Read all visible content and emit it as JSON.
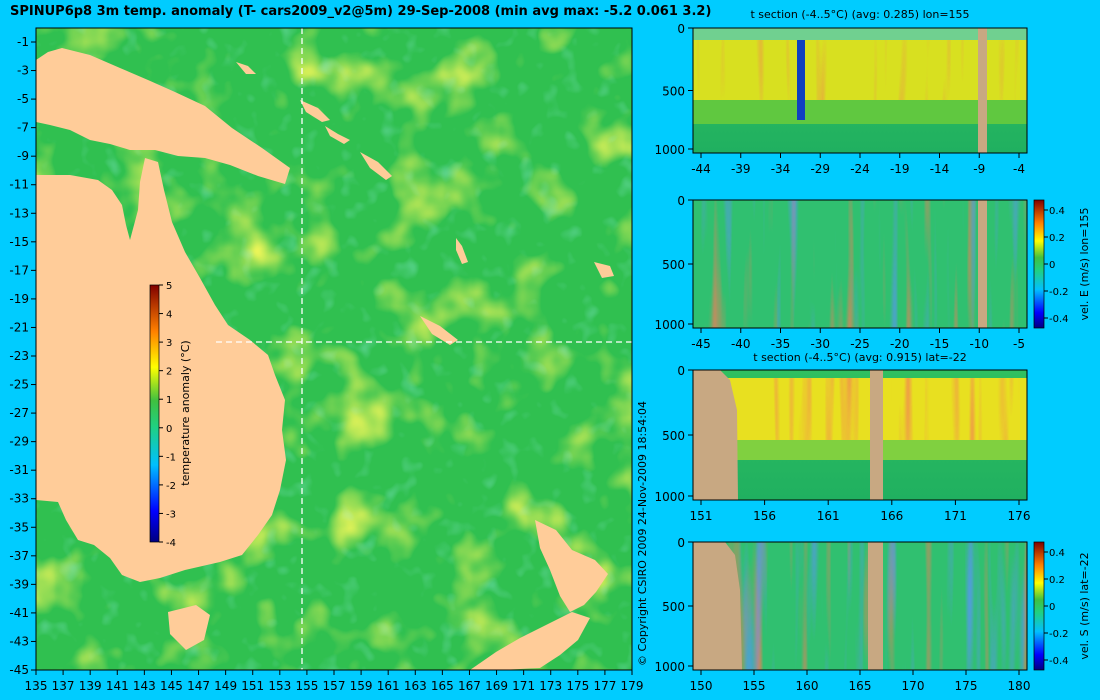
{
  "title": "SPINUP6p8 3m temp. anomaly (T- cars2009_v2@5m) 29-Sep-2008 (min avg max: -5.2 0.061 3.2)",
  "copyright": "© Copyright CSIRO 2009   24-Nov-2009 18:54:04",
  "colors": {
    "background": "#00ccff",
    "land": "#ffcc99",
    "bathymetry": "#c8a882"
  },
  "map": {
    "lon_ticks": [
      "135",
      "137",
      "139",
      "141",
      "143",
      "145",
      "147",
      "149",
      "151",
      "153",
      "155",
      "157",
      "159",
      "161",
      "163",
      "165",
      "167",
      "169",
      "171",
      "173",
      "175",
      "177",
      "179"
    ],
    "lat_ticks": [
      "-1",
      "-3",
      "-5",
      "-7",
      "-9",
      "-11",
      "-13",
      "-15",
      "-17",
      "-19",
      "-21",
      "-23",
      "-25",
      "-27",
      "-29",
      "-31",
      "-33",
      "-35",
      "-37",
      "-39",
      "-41",
      "-43",
      "-45"
    ],
    "section_lon": 155,
    "section_lat": -22,
    "colorbar": {
      "ticks": [
        "5",
        "4",
        "3",
        "2",
        "1",
        "0",
        "-1",
        "-2",
        "-3",
        "-4"
      ],
      "label": "temperature anomaly (°C)"
    }
  },
  "panels": [
    {
      "title": "t section (-4..5°C) (avg: 0.285) lon=155",
      "yticks": [
        "0",
        "500",
        "1000"
      ],
      "xticks": [
        "-44",
        "-39",
        "-34",
        "-29",
        "-24",
        "-19",
        "-14",
        "-9",
        "-4"
      ],
      "colorbar": null
    },
    {
      "title": "",
      "yticks": [
        "0",
        "500",
        "1000"
      ],
      "xticks": [
        "-45",
        "-40",
        "-35",
        "-30",
        "-25",
        "-20",
        "-15",
        "-10",
        "-5"
      ],
      "colorbar": {
        "ticks": [
          "0.4",
          "0.2",
          "0",
          "-0.2",
          "-0.4"
        ],
        "label": "vel. E (m/s) lon=155"
      }
    },
    {
      "title": "t section (-4..5°C) (avg: 0.915) lat=-22",
      "yticks": [
        "0",
        "500",
        "1000"
      ],
      "xticks": [
        "151",
        "156",
        "161",
        "166",
        "171",
        "176"
      ],
      "colorbar": null
    },
    {
      "title": "",
      "yticks": [
        "0",
        "500",
        "1000"
      ],
      "xticks": [
        "150",
        "155",
        "160",
        "165",
        "170",
        "175",
        "180"
      ],
      "colorbar": {
        "ticks": [
          "0.4",
          "0.2",
          "0",
          "-0.2",
          "-0.4"
        ],
        "label": "vel. S (m/s) lat=-22"
      }
    }
  ]
}
